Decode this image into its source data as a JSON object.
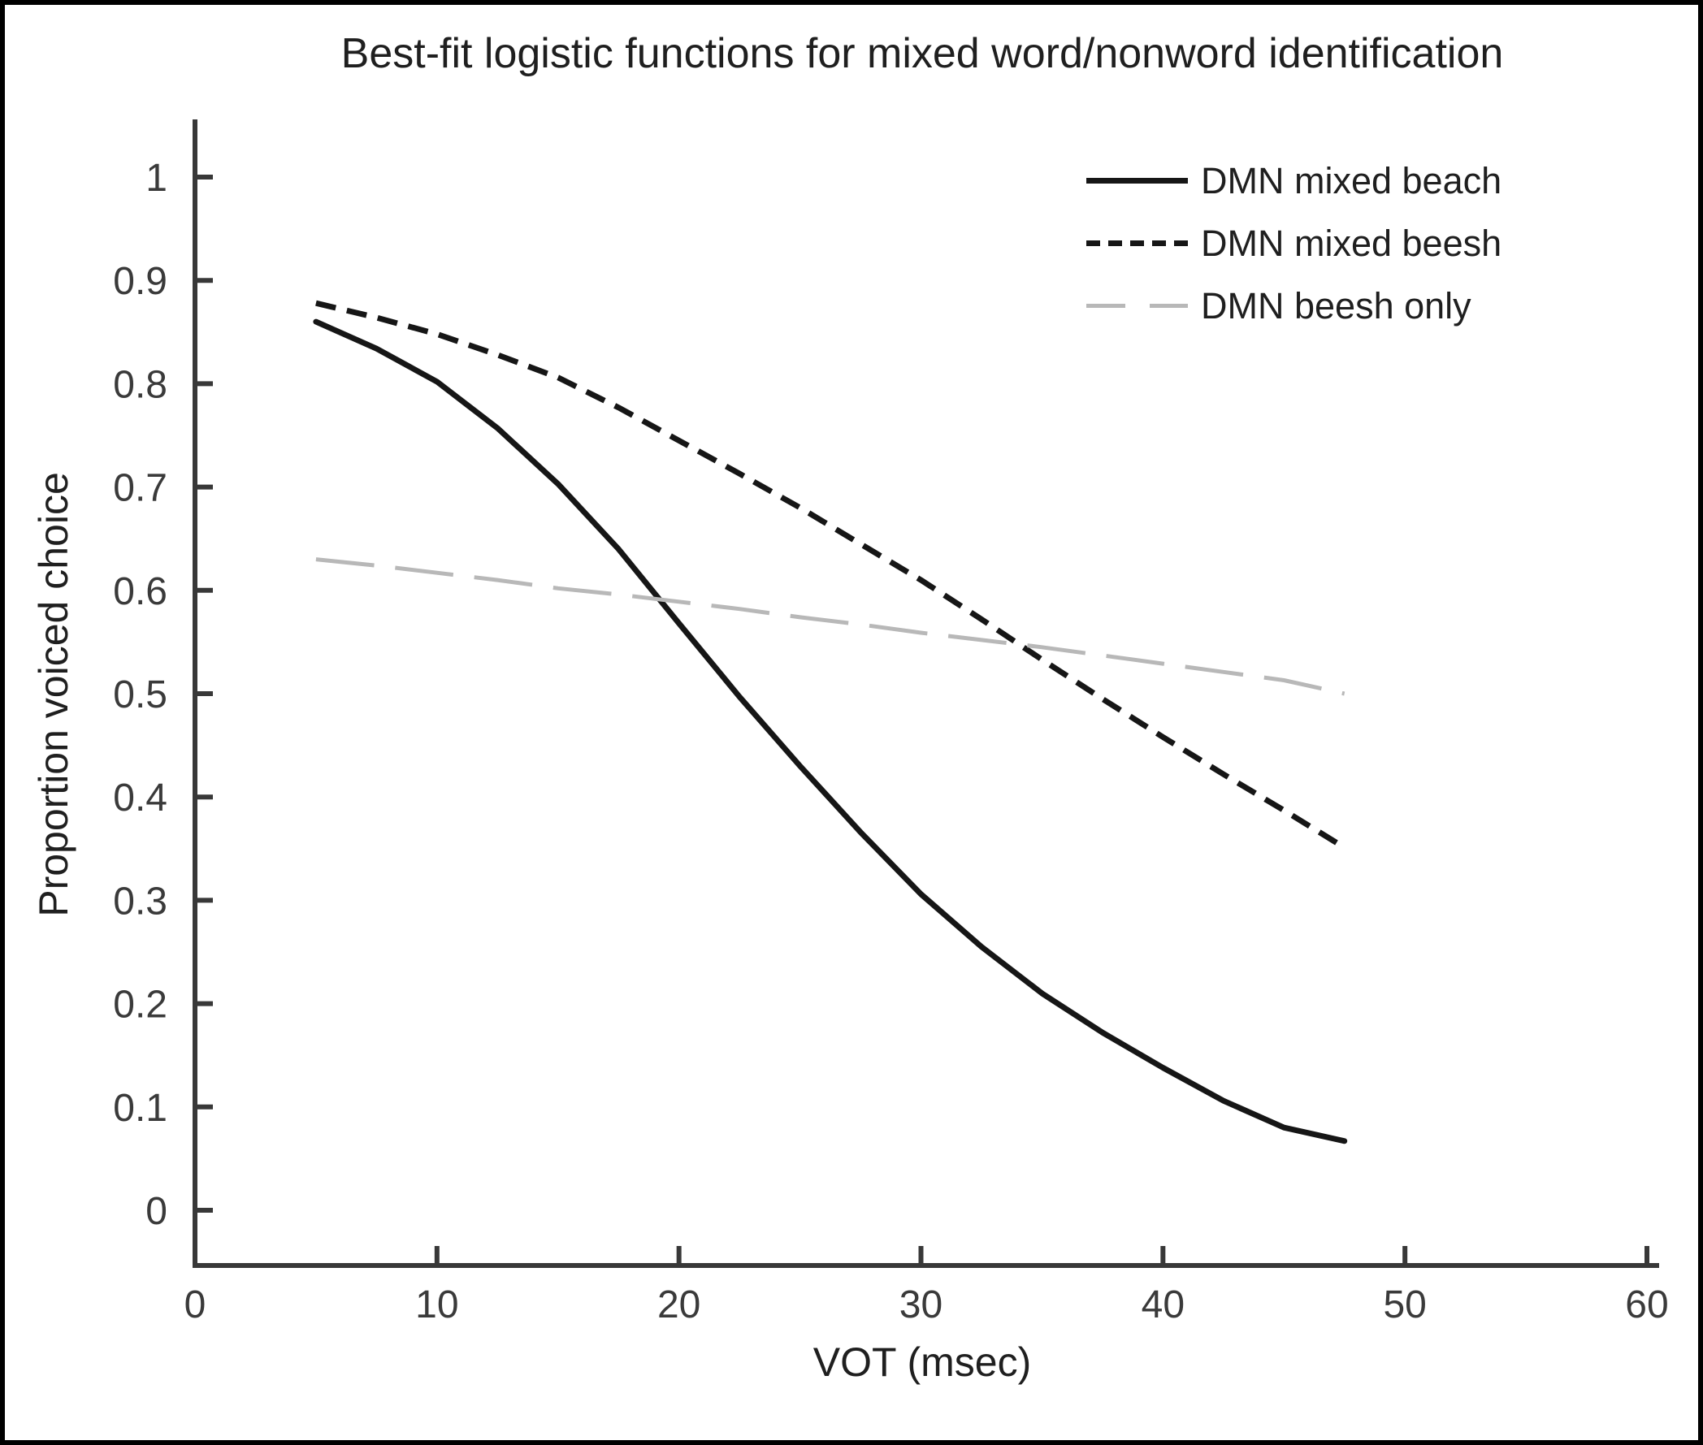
{
  "chart_data": {
    "type": "line",
    "title": "Best-fit logistic functions for mixed word/nonword identification",
    "xlabel": "VOT (msec)",
    "ylabel": "Proportion voiced choice",
    "xlim": [
      0,
      60
    ],
    "ylim": [
      0,
      1
    ],
    "grid": false,
    "legend_position": "upper right",
    "x_ticks": [
      0,
      10,
      20,
      30,
      40,
      50,
      60
    ],
    "x_tick_labels": [
      "0",
      "10",
      "20",
      "30",
      "40",
      "50",
      "60"
    ],
    "y_ticks": [
      0,
      0.1,
      0.2,
      0.3,
      0.4,
      0.5,
      0.6,
      0.7,
      0.8,
      0.9,
      1
    ],
    "y_tick_labels": [
      "0",
      "0.1",
      "0.2",
      "0.3",
      "0.4",
      "0.5",
      "0.6",
      "0.7",
      "0.8",
      "0.9",
      "1"
    ],
    "x": [
      5,
      7.5,
      10,
      12.5,
      15,
      17.5,
      20,
      22.5,
      25,
      27.5,
      30,
      32.5,
      35,
      37.5,
      40,
      42.5,
      45,
      47.5
    ],
    "series": [
      {
        "name": "DMN mixed beach",
        "style": "solid",
        "color": "#161616",
        "width": 7,
        "dash": null,
        "legend_dash": null,
        "values": [
          0.86,
          0.834,
          0.802,
          0.757,
          0.703,
          0.64,
          0.568,
          0.497,
          0.43,
          0.366,
          0.306,
          0.255,
          0.21,
          0.172,
          0.138,
          0.106,
          0.08,
          0.067
        ]
      },
      {
        "name": "DMN mixed beesh",
        "style": "dashed",
        "color": "#161616",
        "width": 7,
        "dash": [
          25,
          14
        ],
        "legend_dash": [
          17,
          10
        ],
        "values": [
          0.878,
          0.864,
          0.848,
          0.828,
          0.806,
          0.777,
          0.745,
          0.713,
          0.68,
          0.645,
          0.61,
          0.572,
          0.533,
          0.495,
          0.458,
          0.422,
          0.387,
          0.351
        ]
      },
      {
        "name": "DMN beesh only",
        "style": "long-dash",
        "color": "#b8b8b8",
        "width": 5,
        "dash": [
          72,
          26
        ],
        "legend_dash": [
          48,
          30
        ],
        "values": [
          0.63,
          0.624,
          0.617,
          0.61,
          0.602,
          0.596,
          0.589,
          0.582,
          0.574,
          0.567,
          0.559,
          0.552,
          0.545,
          0.537,
          0.529,
          0.521,
          0.513,
          0.5
        ]
      }
    ]
  },
  "colors": {
    "background": "#ffffff",
    "frame_border": "#000000",
    "axis": "#383838",
    "tick_text": "#3a3a3a",
    "title_text": "#1f1f1f"
  }
}
